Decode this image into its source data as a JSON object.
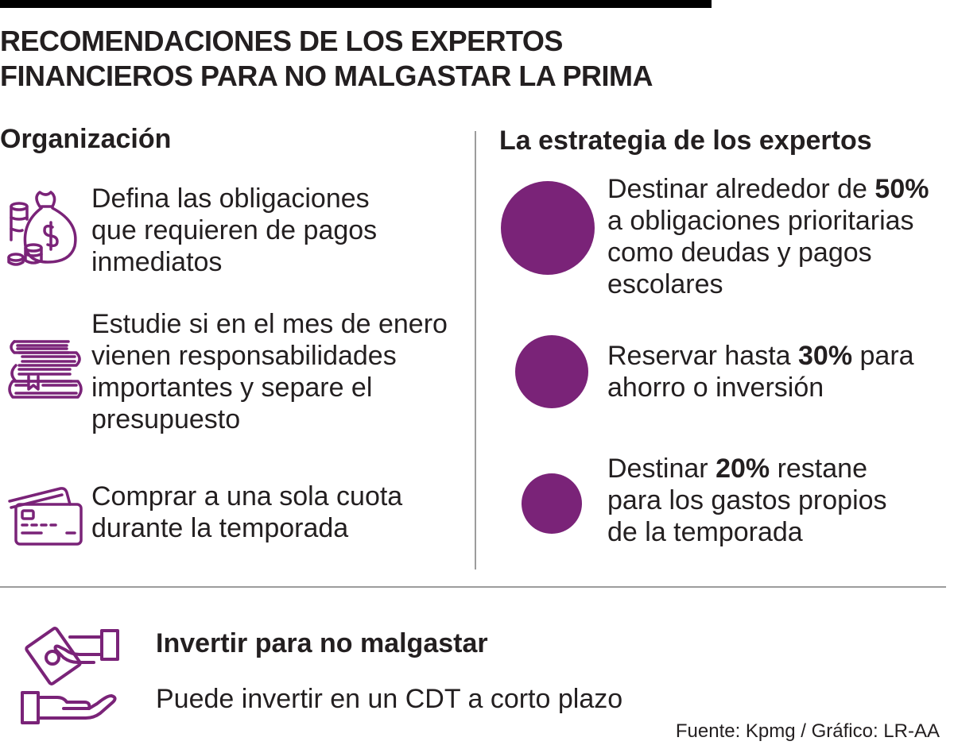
{
  "title": {
    "line1": "RECOMENDACIONES DE LOS EXPERTOS",
    "line2": "FINANCIEROS PARA NO MALGASTAR LA PRIMA"
  },
  "organization": {
    "heading": "Organización",
    "items": [
      {
        "icon": "money-bag-coins-icon",
        "lines": [
          "Defina las obligaciones",
          "que requieren de pagos",
          "inmediatos"
        ]
      },
      {
        "icon": "stack-of-books-icon",
        "lines": [
          "Estudie si en el mes de enero",
          "vienen responsabilidades",
          "importantes y separe el",
          "presupuesto"
        ]
      },
      {
        "icon": "credit-cards-icon",
        "lines": [
          "Comprar a una sola cuota",
          "durante la temporada"
        ]
      }
    ]
  },
  "strategy": {
    "heading": "La estrategia de los expertos",
    "items": [
      {
        "percent": 50,
        "line1_pre": "Destinar alrededor de ",
        "line1_bold": "50%",
        "line1_post": "",
        "lines": [
          "a obligaciones prioritarias",
          "como deudas y pagos",
          "escolares"
        ]
      },
      {
        "percent": 30,
        "line1_pre": "Reservar hasta ",
        "line1_bold": "30%",
        "line1_post": " para",
        "lines": [
          "ahorro o inversión"
        ]
      },
      {
        "percent": 20,
        "line1_pre": "Destinar ",
        "line1_bold": "20%",
        "line1_post": " restane",
        "lines": [
          "para los gastos propios",
          "de la temporada"
        ]
      }
    ]
  },
  "invest": {
    "icon": "hands-exchanging-money-icon",
    "title": "Invertir para no malgastar",
    "text": "Puede invertir en un CDT a corto plazo"
  },
  "source": "Fuente: Kpmg / Gráfico: LR-AA",
  "colors": {
    "accent": "#7a2378",
    "rule": "#000000",
    "divider": "#9c9c9c",
    "text": "#231f20"
  }
}
